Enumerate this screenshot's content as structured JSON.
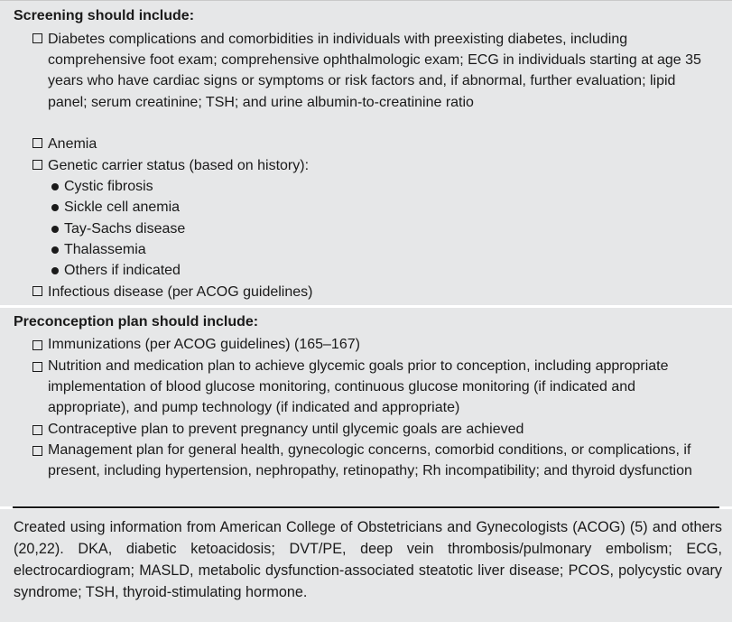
{
  "screening": {
    "heading": "Screening should include:",
    "items": [
      {
        "text": "Diabetes complications and comorbidities in individuals with preexisting diabetes, including comprehensive foot exam; comprehensive ophthalmologic exam; ECG in individuals starting at age 35 years who have cardiac signs or symptoms or risk factors and, if abnormal, further evaluation; lipid panel; serum creatinine; TSH; and urine albumin-to-creatinine ratio"
      },
      {
        "text": "Anemia"
      },
      {
        "text": "Genetic carrier status (based on history):"
      },
      {
        "text": "Infectious disease (per ACOG guidelines)"
      }
    ],
    "genetic_bullets": [
      "Cystic fibrosis",
      "Sickle cell anemia",
      "Tay-Sachs disease",
      "Thalassemia",
      "Others if indicated"
    ]
  },
  "preconception": {
    "heading": "Preconception plan should include:",
    "items": [
      {
        "text": "Immunizations (per ACOG guidelines) (165–167)"
      },
      {
        "text": "Nutrition and medication plan to achieve glycemic goals prior to conception, including appropriate implementation of blood glucose monitoring, continuous glucose monitoring (if indicated and appropriate), and pump technology (if indicated and appropriate)"
      },
      {
        "text": "Contraceptive plan to prevent pregnancy until glycemic goals are achieved"
      },
      {
        "text": "Management plan for general health, gynecologic concerns, comorbid conditions, or complications, if present, including hypertension, nephropathy, retinopathy; Rh incompatibility; and thyroid dysfunction"
      }
    ]
  },
  "footnote": {
    "text": "Created using information from American College of Obstetricians and Gynecologists (ACOG) (5) and others (20,22). DKA, diabetic ketoacidosis; DVT/PE, deep vein thrombosis/pulmonary embolism; ECG, electrocardiogram; MASLD, metabolic dysfunction-associated steatotic liver disease; PCOS, polycystic ovary syndrome; TSH, thyroid-stimulating hormone."
  },
  "colors": {
    "panel_background": "#e6e7e8",
    "text": "#1a1a1a",
    "rule": "#1a1a1a"
  }
}
